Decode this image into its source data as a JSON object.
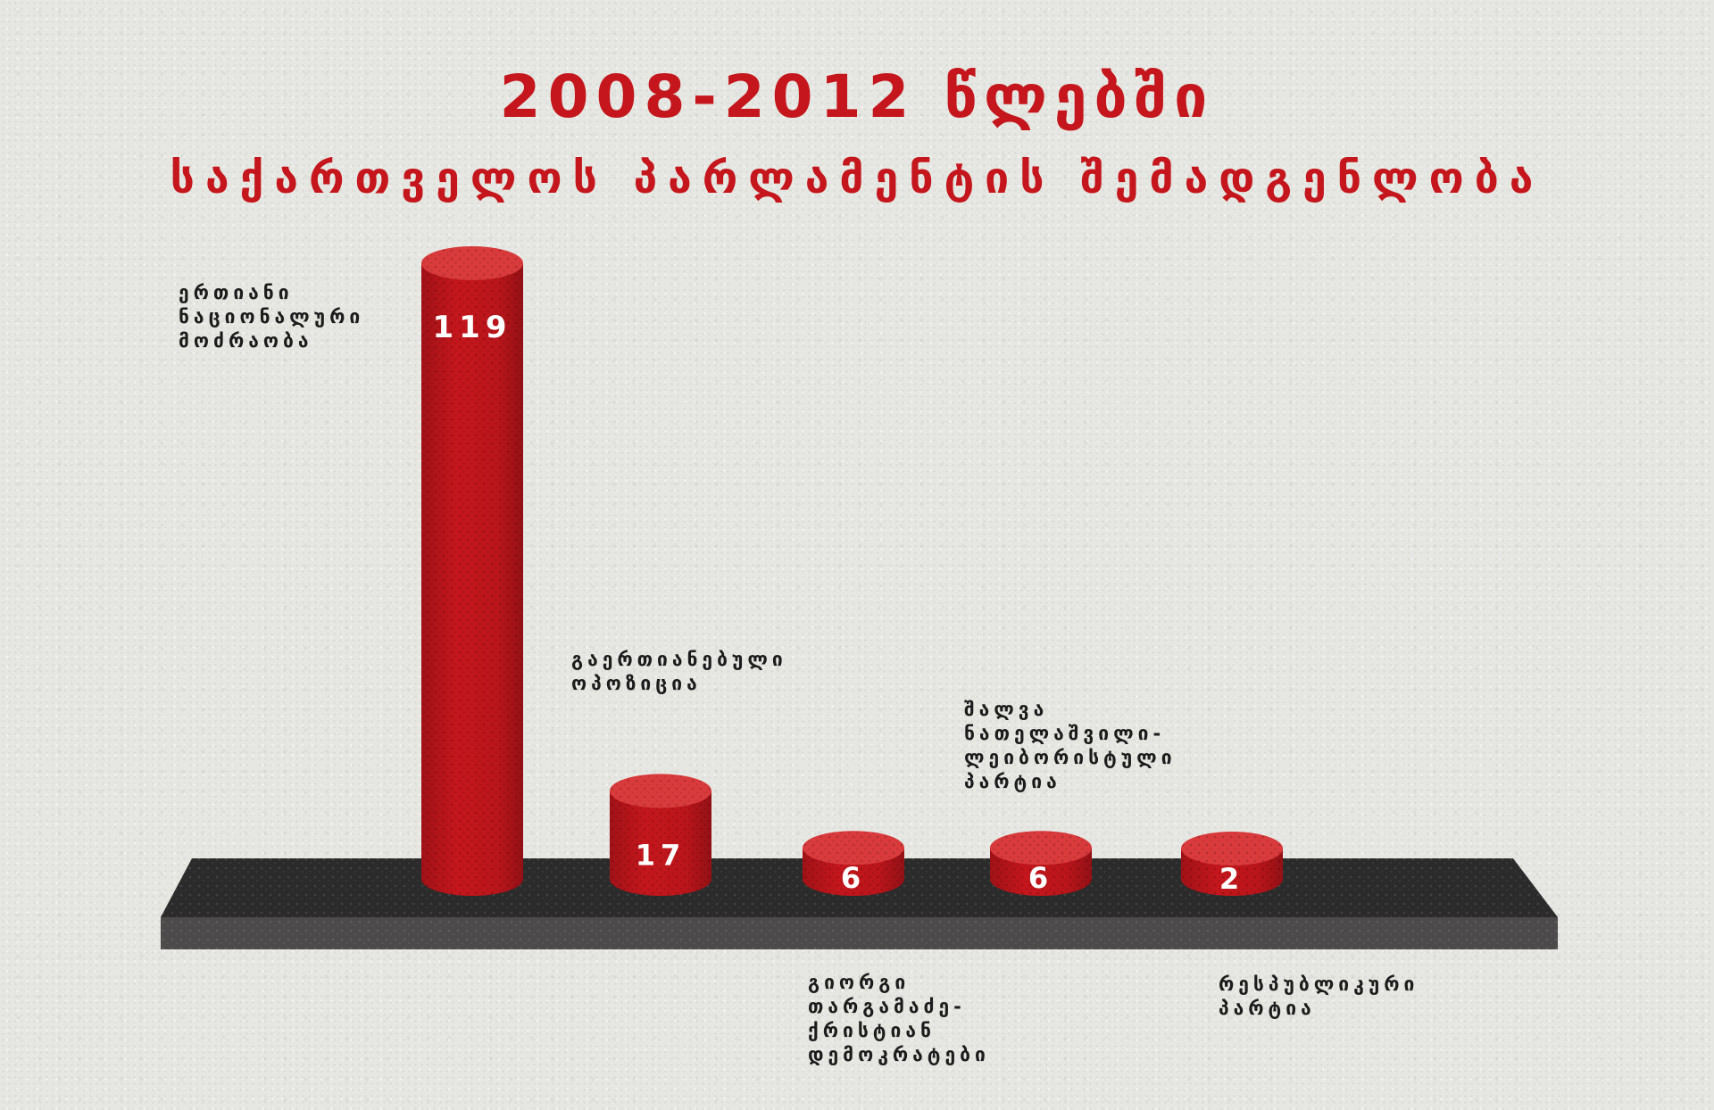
{
  "chart_data": {
    "type": "bar",
    "title": "2008-2012 წლებში",
    "subtitle": "საქართველოს პარლამენტის შემადგენლობა",
    "categories": [
      "ერთიანი ნაციონალური მოძრაობა",
      "გაერთიანებული ოპოზიცია",
      "გიორგი თარგამაძე-ქრისტიან დემოკრატები",
      "შალვა ნათელაშვილი-ლეიბორისტული პარტია",
      "რესპუბლიკური პარტია"
    ],
    "values": [
      119,
      17,
      6,
      6,
      2
    ],
    "data_labels": [
      "119",
      "17",
      "6",
      "6",
      "2"
    ],
    "ylim": [
      0,
      119
    ],
    "grid": false,
    "legend": "none",
    "colors": {
      "bar": "#c4161c",
      "bar_top": "#d93a3c",
      "platform_top": "#2b2b2b",
      "platform_front": "#4d4a4c",
      "title": "#c4161c",
      "label": "#1c1c1c"
    }
  }
}
